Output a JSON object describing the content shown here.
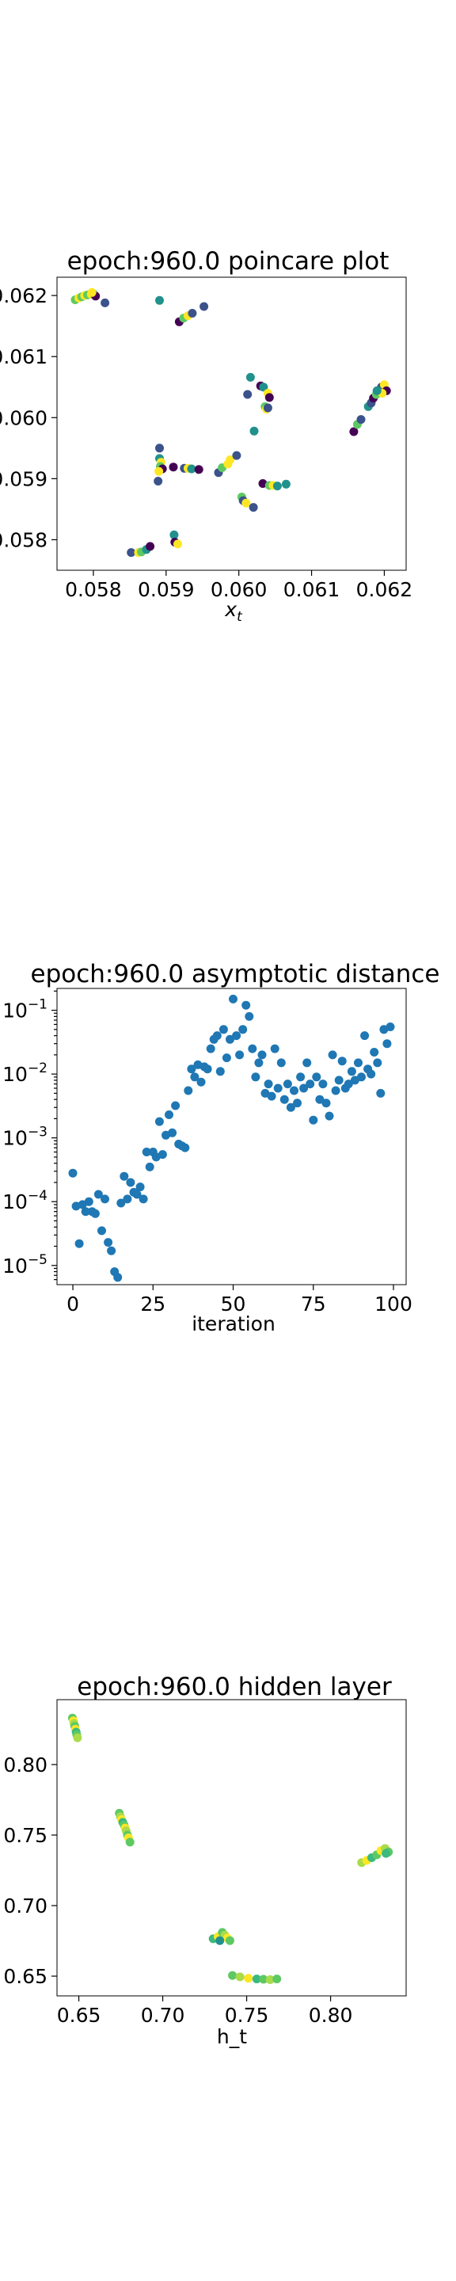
{
  "colors": {
    "poincare_palette": [
      "#440154",
      "#3b528b",
      "#21918c",
      "#5ec962",
      "#fde725"
    ],
    "distance_point": "#1f77b4",
    "hidden_palette": [
      "#21918c",
      "#3bb97f",
      "#5ec962",
      "#a9db4b",
      "#fde725"
    ]
  },
  "chart_data": [
    {
      "type": "scatter",
      "title": "epoch:960.0 poincare plot",
      "xlabel": "x",
      "xlabel_subscript": "t",
      "ylabel": "",
      "xlim": [
        0.0575,
        0.0623
      ],
      "ylim": [
        0.0575,
        0.0623
      ],
      "xticks": [
        0.058,
        0.059,
        0.06,
        0.061,
        0.062
      ],
      "xtick_labels": [
        "0.058",
        "0.059",
        "0.060",
        "0.061",
        "0.062"
      ],
      "yticks": [
        0.058,
        0.059,
        0.06,
        0.061,
        0.062
      ],
      "ytick_labels": [
        "0.058",
        "0.059",
        "0.060",
        "0.061",
        "0.062"
      ],
      "color_scale": "viridis",
      "points": [
        [
          0.05775,
          0.06193,
          3
        ],
        [
          0.0578,
          0.06196,
          4
        ],
        [
          0.05784,
          0.06198,
          3
        ],
        [
          0.05788,
          0.062,
          4
        ],
        [
          0.05792,
          0.06201,
          3
        ],
        [
          0.05797,
          0.06202,
          4
        ],
        [
          0.058,
          0.06203,
          3
        ],
        [
          0.05803,
          0.06199,
          0
        ],
        [
          0.05798,
          0.06205,
          4
        ],
        [
          0.05816,
          0.06188,
          1
        ],
        [
          0.05891,
          0.06192,
          2
        ],
        [
          0.05918,
          0.06157,
          0
        ],
        [
          0.05924,
          0.06163,
          3
        ],
        [
          0.0593,
          0.06167,
          4
        ],
        [
          0.05936,
          0.06171,
          1
        ],
        [
          0.05952,
          0.06182,
          1
        ],
        [
          0.06016,
          0.06066,
          2
        ],
        [
          0.06012,
          0.06038,
          1
        ],
        [
          0.0603,
          0.06052,
          0
        ],
        [
          0.06034,
          0.0605,
          2
        ],
        [
          0.0604,
          0.0604,
          4
        ],
        [
          0.06042,
          0.06033,
          0
        ],
        [
          0.06036,
          0.06018,
          3
        ],
        [
          0.06038,
          0.06014,
          4
        ],
        [
          0.0604,
          0.06016,
          1
        ],
        [
          0.06021,
          0.05978,
          2
        ],
        [
          0.06158,
          0.05977,
          0
        ],
        [
          0.06163,
          0.05989,
          3
        ],
        [
          0.06168,
          0.05997,
          1
        ],
        [
          0.06178,
          0.06018,
          2
        ],
        [
          0.06182,
          0.06024,
          1
        ],
        [
          0.06185,
          0.06032,
          0
        ],
        [
          0.06189,
          0.06038,
          3
        ],
        [
          0.06193,
          0.06044,
          4
        ],
        [
          0.06196,
          0.0605,
          1
        ],
        [
          0.062,
          0.06054,
          4
        ],
        [
          0.06203,
          0.06044,
          0
        ],
        [
          0.06197,
          0.0604,
          4
        ],
        [
          0.0619,
          0.06044,
          2
        ],
        [
          0.05891,
          0.0595,
          1
        ],
        [
          0.05891,
          0.05933,
          2
        ],
        [
          0.05893,
          0.05927,
          4
        ],
        [
          0.05892,
          0.0592,
          3
        ],
        [
          0.05895,
          0.05916,
          0
        ],
        [
          0.0589,
          0.05912,
          4
        ],
        [
          0.05889,
          0.05896,
          1
        ],
        [
          0.0591,
          0.05919,
          0
        ],
        [
          0.05925,
          0.05917,
          1
        ],
        [
          0.0593,
          0.05917,
          4
        ],
        [
          0.05935,
          0.05916,
          2
        ],
        [
          0.05945,
          0.05915,
          0
        ],
        [
          0.05972,
          0.0591,
          1
        ],
        [
          0.05977,
          0.05918,
          3
        ],
        [
          0.05985,
          0.05924,
          4
        ],
        [
          0.05988,
          0.05931,
          4
        ],
        [
          0.05997,
          0.05938,
          1
        ],
        [
          0.06033,
          0.05892,
          0
        ],
        [
          0.06042,
          0.05889,
          3
        ],
        [
          0.06047,
          0.05889,
          4
        ],
        [
          0.06053,
          0.05888,
          2
        ],
        [
          0.06065,
          0.05891,
          2
        ],
        [
          0.06004,
          0.0587,
          3
        ],
        [
          0.06006,
          0.05864,
          1
        ],
        [
          0.0601,
          0.0586,
          4
        ],
        [
          0.0602,
          0.05853,
          1
        ],
        [
          0.05911,
          0.05808,
          2
        ],
        [
          0.05912,
          0.05796,
          0
        ],
        [
          0.05916,
          0.05793,
          4
        ],
        [
          0.05852,
          0.05779,
          1
        ],
        [
          0.05862,
          0.05779,
          4
        ],
        [
          0.05866,
          0.0578,
          3
        ],
        [
          0.05873,
          0.05784,
          2
        ],
        [
          0.05878,
          0.05789,
          0
        ]
      ]
    },
    {
      "type": "scatter",
      "title": "epoch:960.0 asymptotic distance",
      "xlabel": "iteration",
      "ylabel": "",
      "yscale": "log",
      "xlim": [
        -4.95,
        103.95
      ],
      "ylim": [
        5e-06,
        0.22
      ],
      "xticks": [
        0,
        25,
        50,
        75,
        100
      ],
      "xtick_labels": [
        "0",
        "25",
        "50",
        "75",
        "100"
      ],
      "ytick_labels": [
        {
          "base": "10",
          "exp": "−5",
          "value": 1e-05
        },
        {
          "base": "10",
          "exp": "−4",
          "value": 0.0001
        },
        {
          "base": "10",
          "exp": "−3",
          "value": 0.001
        },
        {
          "base": "10",
          "exp": "−2",
          "value": 0.01
        },
        {
          "base": "10",
          "exp": "−1",
          "value": 0.1
        }
      ],
      "x": [
        0,
        1,
        2,
        3,
        4,
        5,
        6,
        7,
        8,
        9,
        10,
        11,
        12,
        13,
        14,
        15,
        16,
        17,
        18,
        19,
        20,
        21,
        22,
        23,
        24,
        25,
        26,
        27,
        28,
        29,
        30,
        31,
        32,
        33,
        34,
        35,
        36,
        37,
        38,
        39,
        40,
        41,
        42,
        43,
        44,
        45,
        46,
        47,
        48,
        49,
        50,
        51,
        52,
        53,
        54,
        55,
        56,
        57,
        58,
        59,
        60,
        61,
        62,
        63,
        64,
        65,
        66,
        67,
        68,
        69,
        70,
        71,
        72,
        73,
        74,
        75,
        76,
        77,
        78,
        79,
        80,
        81,
        82,
        83,
        84,
        85,
        86,
        87,
        88,
        89,
        90,
        91,
        92,
        93,
        94,
        95,
        96,
        97,
        98,
        99
      ],
      "y": [
        0.00028,
        8.5e-05,
        2.2e-05,
        9e-05,
        7e-05,
        0.0001,
        7e-05,
        6.5e-05,
        0.00013,
        3.5e-05,
        0.00011,
        2.3e-05,
        1.7e-05,
        8e-06,
        6.5e-06,
        9.5e-05,
        0.00025,
        0.00011,
        0.0002,
        0.00014,
        0.00013,
        0.00017,
        0.00011,
        0.0006,
        0.00035,
        0.0006,
        0.0005,
        0.0018,
        0.00055,
        0.0011,
        0.0023,
        0.0012,
        0.0032,
        0.0008,
        0.00075,
        0.0007,
        0.0055,
        0.012,
        0.009,
        0.014,
        0.0075,
        0.013,
        0.012,
        0.025,
        0.035,
        0.04,
        0.011,
        0.05,
        0.018,
        0.035,
        0.15,
        0.04,
        0.02,
        0.05,
        0.12,
        0.08,
        0.025,
        0.009,
        0.015,
        0.02,
        0.005,
        0.007,
        0.0045,
        0.025,
        0.006,
        0.015,
        0.004,
        0.007,
        0.003,
        0.0055,
        0.0035,
        0.009,
        0.006,
        0.015,
        0.007,
        0.0019,
        0.009,
        0.004,
        0.007,
        0.0035,
        0.0022,
        0.02,
        0.0055,
        0.008,
        0.016,
        0.006,
        0.007,
        0.011,
        0.008,
        0.015,
        0.009,
        0.04,
        0.012,
        0.01,
        0.022,
        0.015,
        0.005,
        0.05,
        0.03,
        0.055
      ]
    },
    {
      "type": "scatter",
      "title": "epoch:960.0 hidden layer",
      "xlabel": "h_t",
      "ylabel": "",
      "xlim": [
        0.637,
        0.845
      ],
      "ylim": [
        0.636,
        0.846
      ],
      "xticks": [
        0.65,
        0.7,
        0.75,
        0.8
      ],
      "xtick_labels": [
        "0.65",
        "0.70",
        "0.75",
        "0.80"
      ],
      "yticks": [
        0.65,
        0.7,
        0.75,
        0.8
      ],
      "ytick_labels": [
        "0.65",
        "0.70",
        "0.75",
        "0.80"
      ],
      "color_scale": "viridis-upper",
      "points": [
        [
          0.6462,
          0.833,
          2
        ],
        [
          0.6468,
          0.831,
          4
        ],
        [
          0.6472,
          0.829,
          3
        ],
        [
          0.6476,
          0.827,
          2
        ],
        [
          0.648,
          0.825,
          4
        ],
        [
          0.6484,
          0.823,
          1
        ],
        [
          0.6488,
          0.821,
          2
        ],
        [
          0.6492,
          0.819,
          3
        ],
        [
          0.6741,
          0.7655,
          2
        ],
        [
          0.6748,
          0.763,
          3
        ],
        [
          0.6755,
          0.761,
          4
        ],
        [
          0.6762,
          0.759,
          1
        ],
        [
          0.677,
          0.757,
          2
        ],
        [
          0.6776,
          0.755,
          4
        ],
        [
          0.6782,
          0.753,
          3
        ],
        [
          0.679,
          0.75,
          2
        ],
        [
          0.6796,
          0.748,
          4
        ],
        [
          0.6805,
          0.745,
          2
        ],
        [
          0.73,
          0.6765,
          1
        ],
        [
          0.733,
          0.678,
          4
        ],
        [
          0.7355,
          0.681,
          2
        ],
        [
          0.737,
          0.679,
          3
        ],
        [
          0.7385,
          0.677,
          4
        ],
        [
          0.74,
          0.6752,
          2
        ],
        [
          0.734,
          0.6752,
          0
        ],
        [
          0.7415,
          0.6505,
          2
        ],
        [
          0.746,
          0.6495,
          3
        ],
        [
          0.751,
          0.6485,
          4
        ],
        [
          0.756,
          0.648,
          1
        ],
        [
          0.76,
          0.6478,
          2
        ],
        [
          0.764,
          0.6475,
          3
        ],
        [
          0.768,
          0.648,
          2
        ],
        [
          0.8185,
          0.7305,
          3
        ],
        [
          0.8215,
          0.732,
          4
        ],
        [
          0.8245,
          0.734,
          1
        ],
        [
          0.8275,
          0.736,
          2
        ],
        [
          0.83,
          0.739,
          4
        ],
        [
          0.8325,
          0.7405,
          3
        ],
        [
          0.8345,
          0.738,
          2
        ],
        [
          0.833,
          0.737,
          1
        ]
      ]
    }
  ]
}
